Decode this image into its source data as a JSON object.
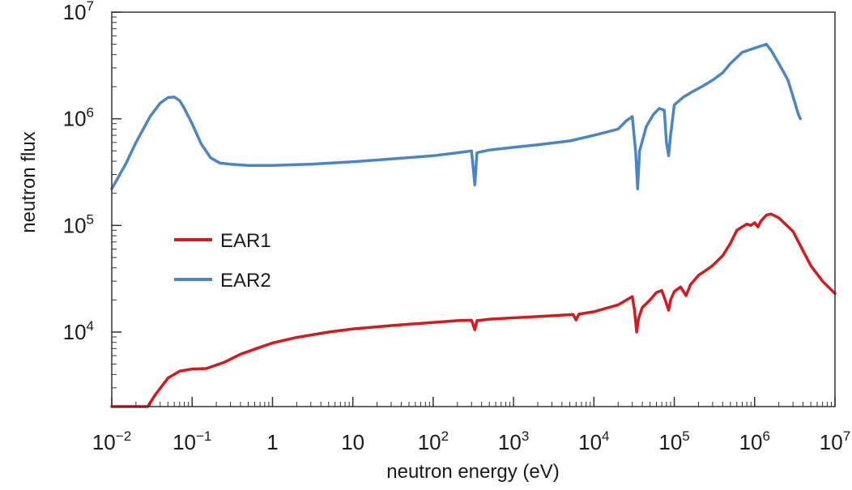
{
  "chart_data": {
    "type": "line",
    "xscale": "log",
    "yscale": "log",
    "xlim": [
      0.01,
      10000000
    ],
    "ylim": [
      2000,
      10000000
    ],
    "xlabel": "neutron energy (eV)",
    "ylabel": "neutron flux",
    "grid": false,
    "legend_position": "center-left",
    "x_ticks": [
      {
        "value": 0.01,
        "base": "10",
        "exp": "−2"
      },
      {
        "value": 0.1,
        "base": "10",
        "exp": "−1"
      },
      {
        "value": 1,
        "base": "1",
        "exp": ""
      },
      {
        "value": 10,
        "base": "10",
        "exp": ""
      },
      {
        "value": 100,
        "base": "10",
        "exp": "2"
      },
      {
        "value": 1000,
        "base": "10",
        "exp": "3"
      },
      {
        "value": 10000,
        "base": "10",
        "exp": "4"
      },
      {
        "value": 100000,
        "base": "10",
        "exp": "5"
      },
      {
        "value": 1000000,
        "base": "10",
        "exp": "6"
      },
      {
        "value": 10000000,
        "base": "10",
        "exp": "7"
      }
    ],
    "y_ticks": [
      {
        "value": 10000,
        "base": "10",
        "exp": "4"
      },
      {
        "value": 100000,
        "base": "10",
        "exp": "5"
      },
      {
        "value": 1000000,
        "base": "10",
        "exp": "6"
      },
      {
        "value": 10000000,
        "base": "10",
        "exp": "7"
      }
    ],
    "series": [
      {
        "name": "EAR1",
        "color": "#d7191c",
        "points": [
          [
            0.01,
            2000
          ],
          [
            0.028,
            2000
          ],
          [
            0.035,
            2600
          ],
          [
            0.05,
            3700
          ],
          [
            0.07,
            4300
          ],
          [
            0.1,
            4500
          ],
          [
            0.15,
            4550
          ],
          [
            0.25,
            5200
          ],
          [
            0.4,
            6200
          ],
          [
            0.7,
            7200
          ],
          [
            1,
            7900
          ],
          [
            2,
            8900
          ],
          [
            5,
            10000
          ],
          [
            10,
            10700
          ],
          [
            30,
            11500
          ],
          [
            100,
            12300
          ],
          [
            200,
            12800
          ],
          [
            300,
            12900
          ],
          [
            330,
            10500
          ],
          [
            350,
            12800
          ],
          [
            500,
            13200
          ],
          [
            1000,
            13600
          ],
          [
            3000,
            14200
          ],
          [
            5500,
            14600
          ],
          [
            6000,
            13000
          ],
          [
            6500,
            14700
          ],
          [
            10000,
            15500
          ],
          [
            20000,
            18000
          ],
          [
            30000,
            21500
          ],
          [
            32000,
            16000
          ],
          [
            34000,
            10000
          ],
          [
            36000,
            13500
          ],
          [
            40000,
            17000
          ],
          [
            50000,
            20000
          ],
          [
            60000,
            23500
          ],
          [
            70000,
            24500
          ],
          [
            80000,
            18500
          ],
          [
            85000,
            16000
          ],
          [
            90000,
            20000
          ],
          [
            100000,
            24000
          ],
          [
            120000,
            26500
          ],
          [
            140000,
            22000
          ],
          [
            160000,
            28000
          ],
          [
            200000,
            34000
          ],
          [
            250000,
            38000
          ],
          [
            300000,
            42000
          ],
          [
            400000,
            52000
          ],
          [
            500000,
            68000
          ],
          [
            600000,
            90000
          ],
          [
            700000,
            97000
          ],
          [
            800000,
            103000
          ],
          [
            900000,
            100000
          ],
          [
            1000000,
            106000
          ],
          [
            1100000,
            97000
          ],
          [
            1200000,
            110000
          ],
          [
            1400000,
            125000
          ],
          [
            1600000,
            128000
          ],
          [
            2000000,
            118000
          ],
          [
            3000000,
            88000
          ],
          [
            5000000,
            42000
          ],
          [
            7000000,
            30000
          ],
          [
            10000000,
            23000
          ]
        ]
      },
      {
        "name": "EAR2",
        "color": "#4a86c5",
        "points": [
          [
            0.01,
            220000
          ],
          [
            0.015,
            380000
          ],
          [
            0.02,
            600000
          ],
          [
            0.03,
            1050000
          ],
          [
            0.04,
            1400000
          ],
          [
            0.05,
            1580000
          ],
          [
            0.06,
            1600000
          ],
          [
            0.07,
            1480000
          ],
          [
            0.08,
            1250000
          ],
          [
            0.1,
            900000
          ],
          [
            0.13,
            580000
          ],
          [
            0.17,
            430000
          ],
          [
            0.22,
            385000
          ],
          [
            0.3,
            375000
          ],
          [
            0.5,
            365000
          ],
          [
            1,
            365000
          ],
          [
            3,
            375000
          ],
          [
            10,
            395000
          ],
          [
            30,
            420000
          ],
          [
            100,
            450000
          ],
          [
            200,
            480000
          ],
          [
            300,
            500000
          ],
          [
            330,
            240000
          ],
          [
            350,
            480000
          ],
          [
            500,
            510000
          ],
          [
            1000,
            540000
          ],
          [
            2000,
            570000
          ],
          [
            5000,
            620000
          ],
          [
            10000,
            700000
          ],
          [
            20000,
            800000
          ],
          [
            25000,
            950000
          ],
          [
            30000,
            1050000
          ],
          [
            33000,
            500000
          ],
          [
            35000,
            220000
          ],
          [
            37000,
            500000
          ],
          [
            45000,
            850000
          ],
          [
            55000,
            1100000
          ],
          [
            65000,
            1250000
          ],
          [
            75000,
            1200000
          ],
          [
            80000,
            600000
          ],
          [
            85000,
            450000
          ],
          [
            90000,
            700000
          ],
          [
            100000,
            1350000
          ],
          [
            130000,
            1600000
          ],
          [
            170000,
            1800000
          ],
          [
            220000,
            2000000
          ],
          [
            300000,
            2300000
          ],
          [
            400000,
            2700000
          ],
          [
            500000,
            3300000
          ],
          [
            700000,
            4200000
          ],
          [
            1000000,
            4600000
          ],
          [
            1400000,
            5000000
          ],
          [
            1600000,
            4400000
          ],
          [
            2000000,
            3300000
          ],
          [
            2600000,
            2300000
          ],
          [
            3100000,
            1500000
          ],
          [
            3500000,
            1100000
          ],
          [
            3700000,
            1000000
          ]
        ]
      }
    ]
  }
}
